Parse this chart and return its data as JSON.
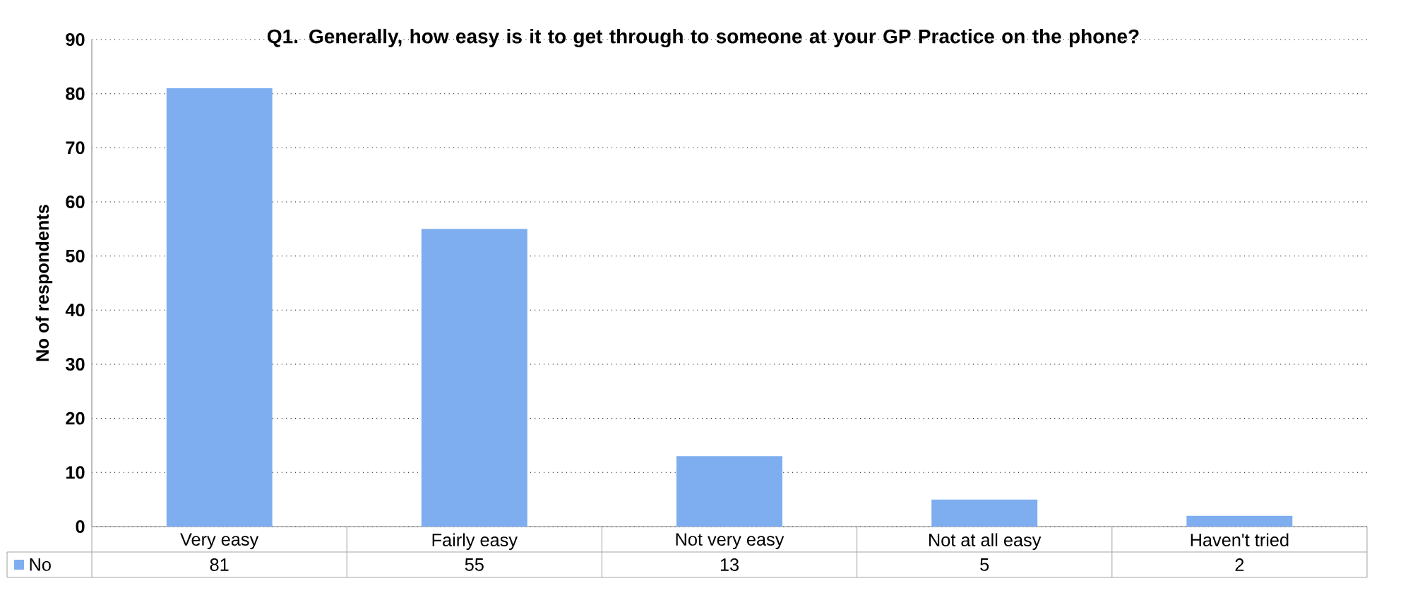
{
  "chart_data": {
    "type": "bar",
    "title": "Q1. Generally, how easy is it to get through to someone at your GP Practice on the phone?",
    "ylabel": "No of respondents",
    "categories": [
      "Very easy",
      "Fairly easy",
      "Not very easy",
      "Not at all easy",
      "Haven't tried"
    ],
    "series": [
      {
        "name": "No",
        "color": "#7eaef0",
        "values": [
          81,
          55,
          13,
          5,
          2
        ]
      }
    ],
    "ylim": [
      0,
      90
    ],
    "yticks": [
      0,
      10,
      20,
      30,
      40,
      50,
      60,
      70,
      80,
      90
    ],
    "grid": "y",
    "legend": "bottom",
    "data_labels": true
  }
}
